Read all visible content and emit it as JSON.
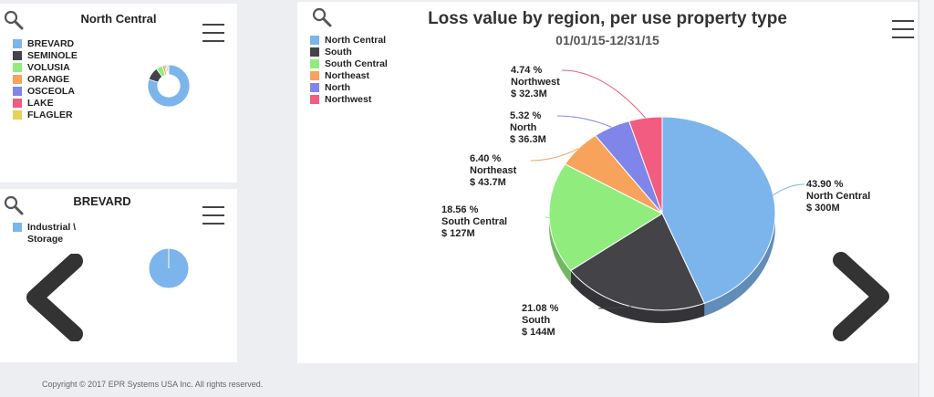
{
  "panels": {
    "north_central": {
      "title": "North Central",
      "legend": [
        {
          "label": "BREVARD",
          "color": "#7cb5ec"
        },
        {
          "label": "SEMINOLE",
          "color": "#434348"
        },
        {
          "label": "VOLUSIA",
          "color": "#90ed7d"
        },
        {
          "label": "ORANGE",
          "color": "#f7a35c"
        },
        {
          "label": "OSCEOLA",
          "color": "#8085e9"
        },
        {
          "label": "LAKE",
          "color": "#f15c80"
        },
        {
          "label": "FLAGLER",
          "color": "#e4d354"
        }
      ]
    },
    "brevard": {
      "title": "BREVARD",
      "legend": [
        {
          "label": "Industrial \\ Storage",
          "color": "#7cb5ec"
        }
      ]
    }
  },
  "chart_data": [
    {
      "type": "pie",
      "title": "North Central",
      "labels": [
        "BREVARD",
        "SEMINOLE",
        "VOLUSIA",
        "ORANGE",
        "OSCEOLA",
        "LAKE",
        "FLAGLER"
      ],
      "values": [
        80,
        10,
        5,
        2,
        1,
        1,
        1
      ],
      "colors": [
        "#7cb5ec",
        "#434348",
        "#90ed7d",
        "#f7a35c",
        "#8085e9",
        "#f15c80",
        "#e4d354"
      ],
      "inner_radius_ratio": 0.55
    },
    {
      "type": "pie",
      "title": "BREVARD",
      "labels": [
        "Industrial \\ Storage"
      ],
      "values": [
        100
      ],
      "colors": [
        "#7cb5ec"
      ]
    },
    {
      "type": "pie",
      "title": "Loss value by region, per use property type",
      "subtitle": "01/01/15-12/31/15",
      "legend_position": "top-left",
      "labels": [
        "North Central",
        "South",
        "South Central",
        "Northeast",
        "North",
        "Northwest"
      ],
      "colors": [
        "#7cb5ec",
        "#434348",
        "#90ed7d",
        "#f7a35c",
        "#8085e9",
        "#f15c80"
      ],
      "percent": [
        43.9,
        21.08,
        18.56,
        6.4,
        5.32,
        4.74
      ],
      "percent_labels": [
        "43.90 %",
        "21.08 %",
        "18.56 %",
        "6.40 %",
        "5.32 %",
        "4.74 %"
      ],
      "value_labels": [
        "$ 300M",
        "$ 144M",
        "$ 127M",
        "$ 43.7M",
        "$ 36.3M",
        "$ 32.3M"
      ]
    }
  ],
  "footer": {
    "copyright": "Copyright © 2017 EPR Systems USA Inc. All rights reserved."
  }
}
